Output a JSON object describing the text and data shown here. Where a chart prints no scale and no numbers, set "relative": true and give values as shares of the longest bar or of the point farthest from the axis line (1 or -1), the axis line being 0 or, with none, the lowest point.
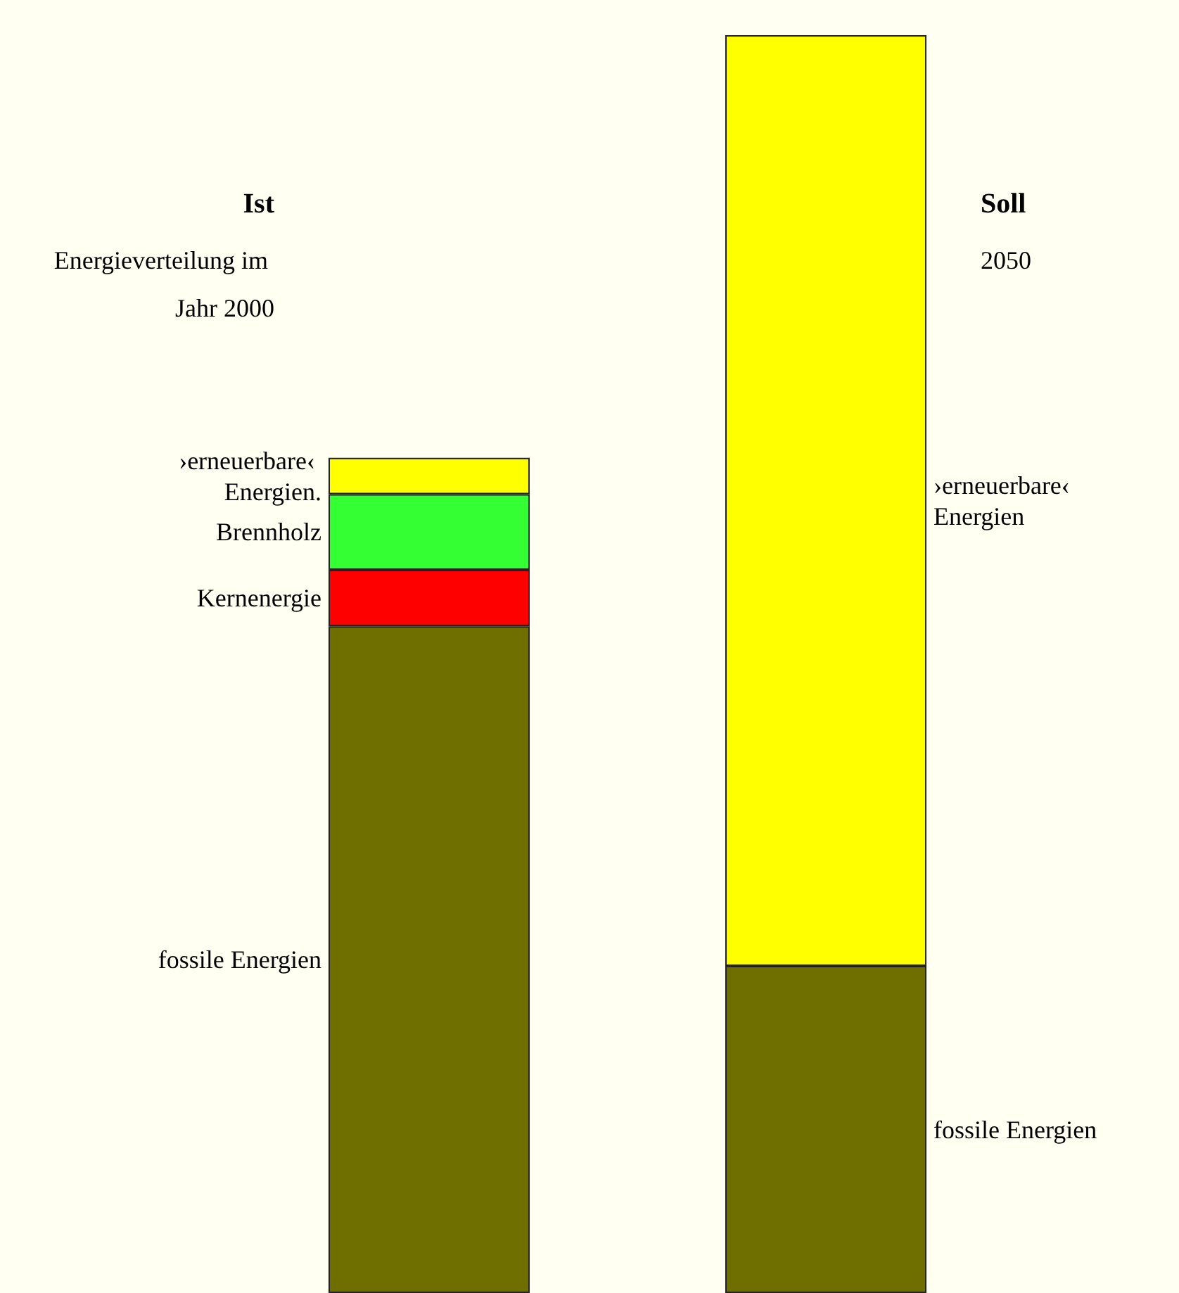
{
  "chart_data": {
    "type": "bar",
    "stacked": true,
    "relative": true,
    "categories": [
      "Ist",
      "Soll"
    ],
    "series": [
      {
        "name": "fossile Energien",
        "color": "#6f6f00",
        "values": [
          0.53,
          0.26
        ]
      },
      {
        "name": "Kernenergie",
        "color": "#ff0000",
        "values": [
          0.045,
          null
        ]
      },
      {
        "name": "Brennholz",
        "color": "#33ff33",
        "values": [
          0.06,
          null
        ]
      },
      {
        "name": "›erneuerbare‹ Energien.",
        "color": "#ffff00",
        "values": [
          0.029,
          null
        ]
      },
      {
        "name": "›erneuerbare‹ Energien",
        "color": "#ffff00",
        "values": [
          null,
          0.74
        ]
      }
    ],
    "annotations": [
      "Energieverteilung im Jahr 2000",
      "2050"
    ],
    "legend": false
  }
}
